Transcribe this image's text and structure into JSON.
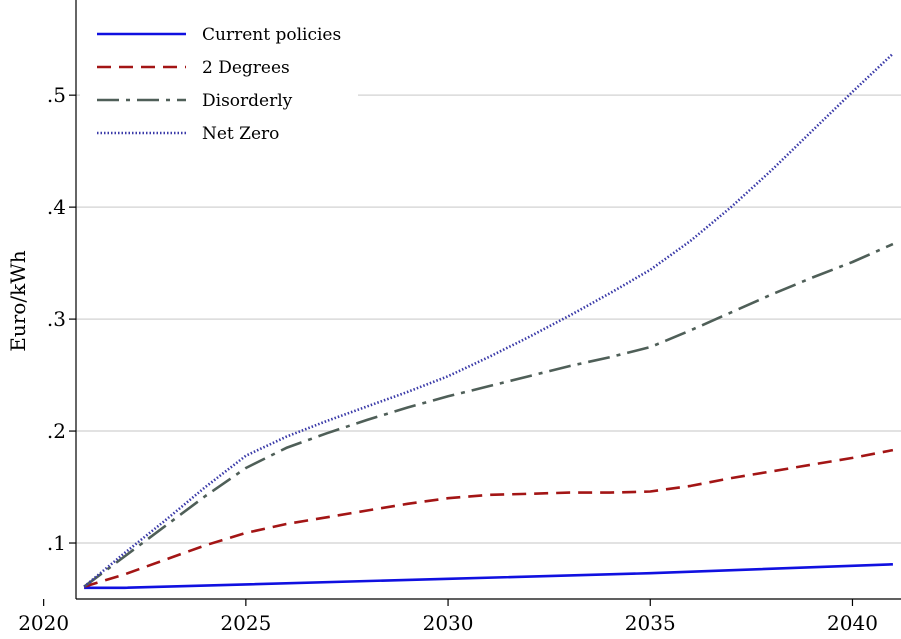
{
  "chart_data": {
    "type": "line",
    "title": "",
    "xlabel": "",
    "ylabel": "Euro/kWh",
    "xlim": [
      2020.8,
      2041.2
    ],
    "ylim": [
      0.05,
      0.585
    ],
    "x_ticks": [
      2020,
      2025,
      2030,
      2035,
      2040
    ],
    "x_tick_labels": [
      "2020",
      "2025",
      "2030",
      "2035",
      "2040"
    ],
    "y_ticks": [
      0.1,
      0.2,
      0.3,
      0.4,
      0.5
    ],
    "y_tick_labels": [
      ".1",
      ".2",
      ".3",
      ".4",
      ".5"
    ],
    "grid": true,
    "legend_position": "top-left",
    "series": [
      {
        "name": "Current policies",
        "color": "#1010e0",
        "style": "solid",
        "x": [
          2021,
          2022,
          2025,
          2030,
          2035,
          2041
        ],
        "values": [
          0.06,
          0.06,
          0.063,
          0.068,
          0.073,
          0.081
        ]
      },
      {
        "name": "2 Degrees",
        "color": "#a31515",
        "style": "dash",
        "x": [
          2021,
          2022,
          2023,
          2024,
          2025,
          2026,
          2027,
          2028,
          2029,
          2030,
          2031,
          2032,
          2033,
          2034,
          2035,
          2036,
          2037,
          2038,
          2039,
          2040,
          2041
        ],
        "values": [
          0.061,
          0.072,
          0.085,
          0.098,
          0.109,
          0.117,
          0.123,
          0.129,
          0.135,
          0.14,
          0.143,
          0.144,
          0.145,
          0.145,
          0.146,
          0.151,
          0.158,
          0.164,
          0.17,
          0.176,
          0.183
        ]
      },
      {
        "name": "Disorderly",
        "color": "#4f5f58",
        "style": "dashdot",
        "x": [
          2021,
          2022,
          2023,
          2024,
          2025,
          2026,
          2027,
          2028,
          2029,
          2030,
          2031,
          2032,
          2033,
          2034,
          2035,
          2036,
          2037,
          2038,
          2039,
          2040,
          2041
        ],
        "values": [
          0.061,
          0.088,
          0.115,
          0.142,
          0.167,
          0.185,
          0.198,
          0.21,
          0.221,
          0.231,
          0.24,
          0.249,
          0.258,
          0.266,
          0.275,
          0.29,
          0.306,
          0.322,
          0.337,
          0.351,
          0.367
        ]
      },
      {
        "name": "Net Zero",
        "color": "#3a3aa8",
        "style": "dotted",
        "x": [
          2021,
          2022,
          2023,
          2024,
          2025,
          2026,
          2027,
          2028,
          2029,
          2030,
          2031,
          2032,
          2033,
          2034,
          2035,
          2036,
          2037,
          2038,
          2039,
          2040,
          2041
        ],
        "values": [
          0.061,
          0.091,
          0.12,
          0.15,
          0.178,
          0.195,
          0.209,
          0.222,
          0.235,
          0.249,
          0.266,
          0.284,
          0.303,
          0.323,
          0.344,
          0.37,
          0.4,
          0.433,
          0.468,
          0.503,
          0.537
        ]
      }
    ]
  }
}
